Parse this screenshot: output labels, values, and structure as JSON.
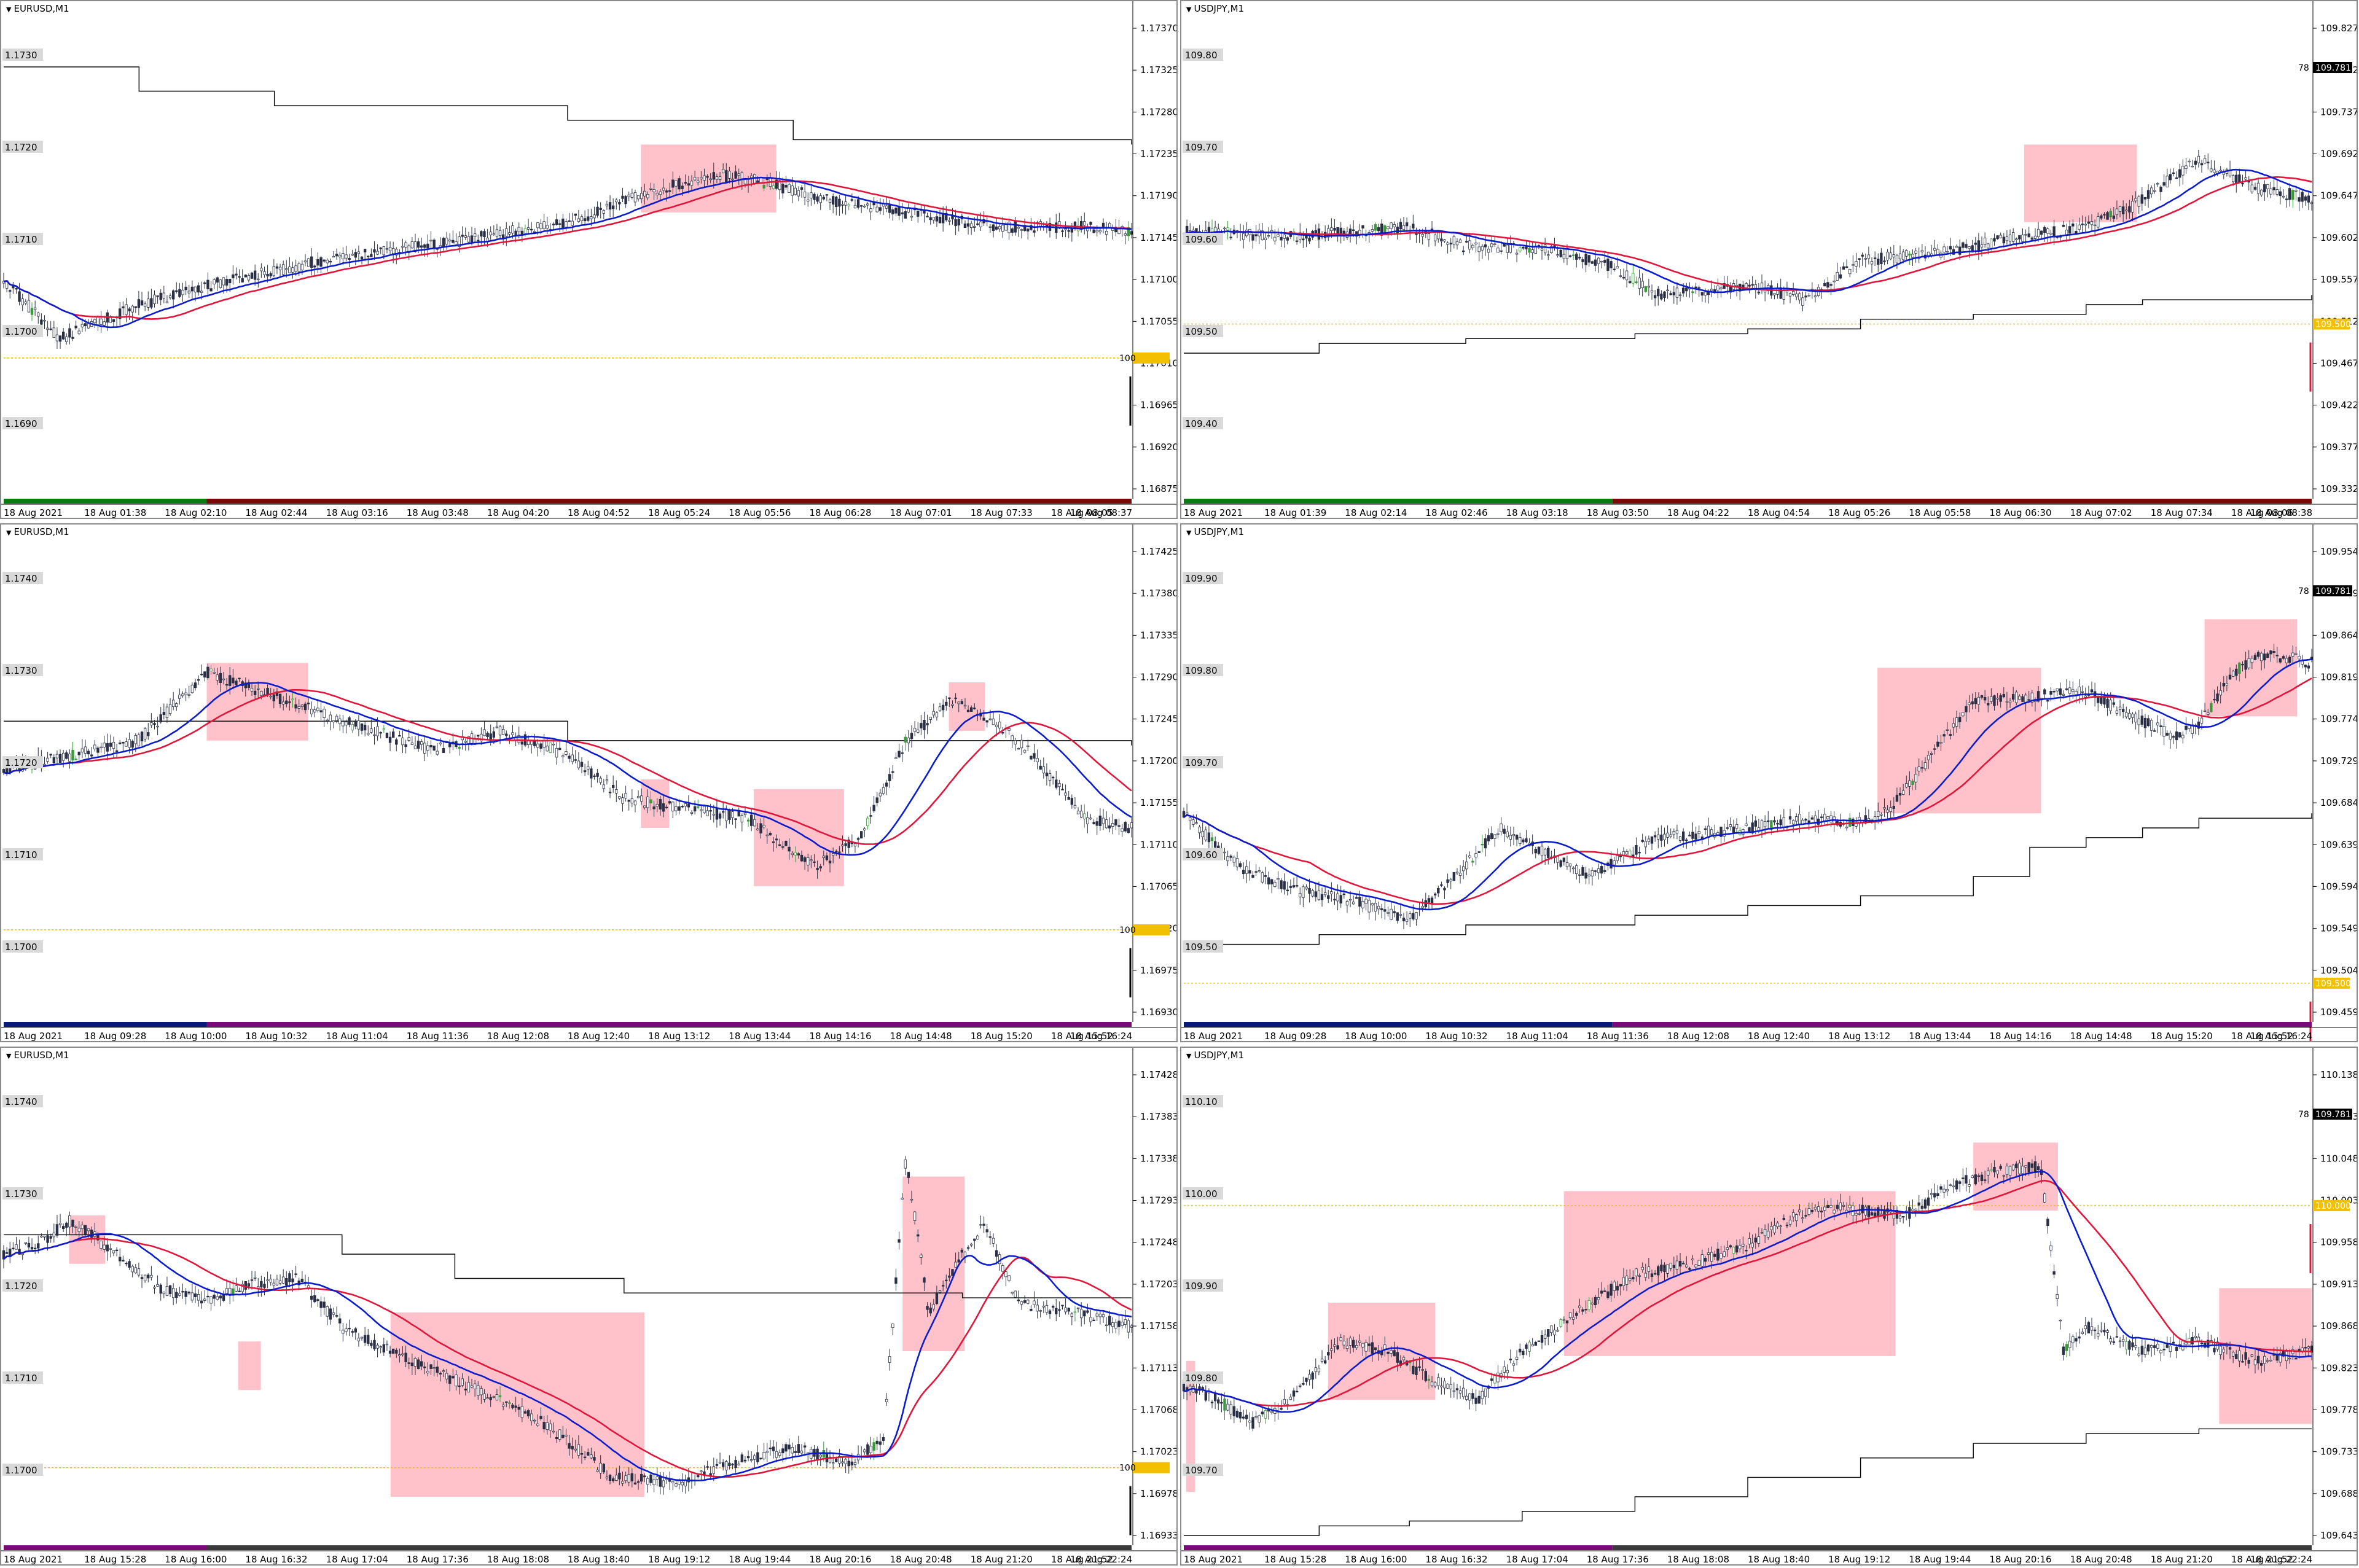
{
  "colors": {
    "background": "#ffffff",
    "candle": "#2a2f45",
    "candle_up": "#3a9a3a",
    "ma_fast": "#0a1ccc",
    "ma_slow": "#e0163a",
    "step_line": "#000000",
    "highlight": "#ffb6c1",
    "dotted_level": "#f3c000",
    "price_tag_black": "#000000",
    "price_tag_gold": "#f3c000",
    "session_green": "#0a7a12",
    "session_red": "#7a0a0a",
    "session_navy": "#0a1a7a",
    "session_purple": "#7a0a7a"
  },
  "panels": [
    {
      "id": "p1",
      "title": "EURUSD,M1",
      "right_ticks": [
        "1.17370",
        "1.17325",
        "1.17280",
        "1.17235",
        "1.17190",
        "1.17145",
        "1.17100",
        "1.17055",
        "1.17010",
        "1.16965",
        "1.16920",
        "1.16875"
      ],
      "level_labels": [
        "1.1730",
        "1.1720",
        "1.1710",
        "1.1700",
        "1.1690"
      ],
      "time_labels": [
        "18 Aug 2021",
        "18 Aug 01:38",
        "18 Aug 02:10",
        "18 Aug 02:44",
        "18 Aug 03:16",
        "18 Aug 03:48",
        "18 Aug 04:20",
        "18 Aug 04:52",
        "18 Aug 05:24",
        "18 Aug 05:56",
        "18 Aug 06:28",
        "18 Aug 07:01",
        "18 Aug 07:33",
        "18 Aug 08:05",
        "18 Aug 08:37"
      ],
      "price_tags": [
        {
          "text": "100",
          "color": "gold"
        }
      ],
      "session": [
        "green",
        "red"
      ]
    },
    {
      "id": "p2",
      "title": "USDJPY,M1",
      "right_ticks": [
        "109.827",
        "109.782",
        "109.737",
        "109.692",
        "109.647",
        "109.602",
        "109.557",
        "109.512",
        "109.467",
        "109.422",
        "109.377",
        "109.332"
      ],
      "level_labels": [
        "109.80",
        "109.70",
        "109.60",
        "109.50",
        "109.40"
      ],
      "time_labels": [
        "18 Aug 2021",
        "18 Aug 01:39",
        "18 Aug 02:14",
        "18 Aug 02:46",
        "18 Aug 03:18",
        "18 Aug 03:50",
        "18 Aug 04:22",
        "18 Aug 04:54",
        "18 Aug 05:26",
        "18 Aug 05:58",
        "18 Aug 06:30",
        "18 Aug 07:02",
        "18 Aug 07:34",
        "18 Aug 08:06",
        "18 Aug 08:38"
      ],
      "price_tags": [
        {
          "text": "78",
          "value": "109.781",
          "color": "black"
        },
        {
          "text": "",
          "value": "109.500",
          "color": "gold"
        }
      ],
      "session": [
        "green",
        "red"
      ]
    },
    {
      "id": "p3",
      "title": "EURUSD,M1",
      "right_ticks": [
        "1.17425",
        "1.17380",
        "1.17335",
        "1.17290",
        "1.17245",
        "1.17200",
        "1.17155",
        "1.17110",
        "1.17065",
        "1.17020",
        "1.16975",
        "1.16930"
      ],
      "level_labels": [
        "1.1740",
        "1.1730",
        "1.1720",
        "1.1710",
        "1.1700"
      ],
      "time_labels": [
        "18 Aug 2021",
        "18 Aug 09:28",
        "18 Aug 10:00",
        "18 Aug 10:32",
        "18 Aug 11:04",
        "18 Aug 11:36",
        "18 Aug 12:08",
        "18 Aug 12:40",
        "18 Aug 13:12",
        "18 Aug 13:44",
        "18 Aug 14:16",
        "18 Aug 14:48",
        "18 Aug 15:20",
        "18 Aug 15:52",
        "18 Aug 16:24"
      ],
      "price_tags": [
        {
          "text": "100",
          "color": "gold"
        }
      ],
      "session": [
        "navy",
        "purple"
      ]
    },
    {
      "id": "p4",
      "title": "USDJPY,M1",
      "right_ticks": [
        "109.954",
        "109.909",
        "109.864",
        "109.819",
        "109.774",
        "109.729",
        "109.684",
        "109.639",
        "109.594",
        "109.549",
        "109.504",
        "109.459"
      ],
      "level_labels": [
        "109.90",
        "109.80",
        "109.70",
        "109.60",
        "109.50"
      ],
      "time_labels": [
        "18 Aug 2021",
        "18 Aug 09:28",
        "18 Aug 10:00",
        "18 Aug 10:32",
        "18 Aug 11:04",
        "18 Aug 11:36",
        "18 Aug 12:08",
        "18 Aug 12:40",
        "18 Aug 13:12",
        "18 Aug 13:44",
        "18 Aug 14:16",
        "18 Aug 14:48",
        "18 Aug 15:20",
        "18 Aug 15:52",
        "18 Aug 16:24"
      ],
      "price_tags": [
        {
          "text": "78",
          "value": "109.781",
          "color": "black"
        },
        {
          "text": "",
          "value": "109.500",
          "color": "gold"
        }
      ],
      "session": [
        "navy",
        "purple"
      ]
    },
    {
      "id": "p5",
      "title": "EURUSD,M1",
      "right_ticks": [
        "1.17428",
        "1.17383",
        "1.17338",
        "1.17293",
        "1.17248",
        "1.17203",
        "1.17158",
        "1.17113",
        "1.17068",
        "1.17023",
        "1.16978",
        "1.16933"
      ],
      "level_labels": [
        "1.1740",
        "1.1730",
        "1.1720",
        "1.1710",
        "1.1700"
      ],
      "time_labels": [
        "18 Aug 2021",
        "18 Aug 15:28",
        "18 Aug 16:00",
        "18 Aug 16:32",
        "18 Aug 17:04",
        "18 Aug 17:36",
        "18 Aug 18:08",
        "18 Aug 18:40",
        "18 Aug 19:12",
        "18 Aug 19:44",
        "18 Aug 20:16",
        "18 Aug 20:48",
        "18 Aug 21:20",
        "18 Aug 21:52",
        "18 Aug 22:24"
      ],
      "price_tags": [
        {
          "text": "100",
          "color": "gold"
        }
      ],
      "session": [
        "purple",
        "dark"
      ]
    },
    {
      "id": "p6",
      "title": "USDJPY,M1",
      "right_ticks": [
        "110.138",
        "110.093",
        "110.048",
        "110.003",
        "109.958",
        "109.913",
        "109.868",
        "109.823",
        "109.778",
        "109.733",
        "109.688",
        "109.643"
      ],
      "level_labels": [
        "110.10",
        "110.00",
        "109.90",
        "109.80",
        "109.70"
      ],
      "time_labels": [
        "18 Aug 2021",
        "18 Aug 15:28",
        "18 Aug 16:00",
        "18 Aug 16:32",
        "18 Aug 17:04",
        "18 Aug 17:36",
        "18 Aug 18:08",
        "18 Aug 18:40",
        "18 Aug 19:12",
        "18 Aug 19:44",
        "18 Aug 20:16",
        "18 Aug 20:48",
        "18 Aug 21:20",
        "18 Aug 21:52",
        "18 Aug 22:24"
      ],
      "price_tags": [
        {
          "text": "78",
          "value": "109.781",
          "color": "black"
        },
        {
          "text": "",
          "value": "110.000",
          "color": "gold"
        }
      ],
      "session": [
        "purple",
        "dark"
      ]
    }
  ]
}
